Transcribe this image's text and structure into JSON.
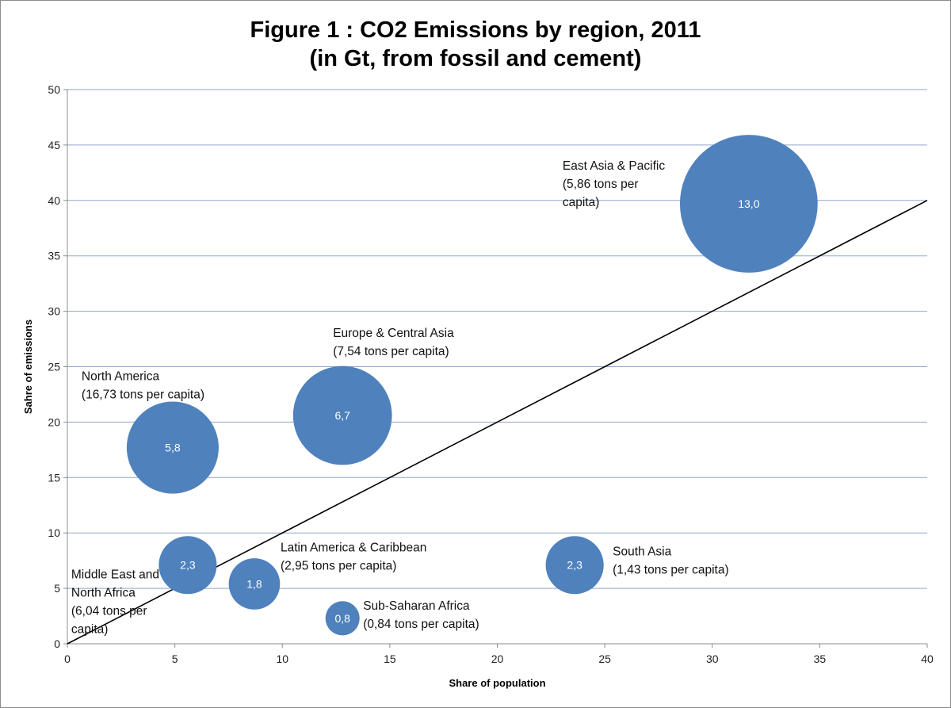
{
  "chart_data": {
    "type": "bubble",
    "title": [
      "Figure 1 : CO2 Emissions by region, 2011",
      "(in Gt, from fossil and cement)"
    ],
    "xlabel": "Share of population",
    "ylabel": "Sahre of emissions",
    "xlim": [
      0,
      40
    ],
    "ylim": [
      0,
      50
    ],
    "x_ticks": [
      0,
      5,
      10,
      15,
      20,
      25,
      30,
      35,
      40
    ],
    "y_ticks": [
      0,
      5,
      10,
      15,
      20,
      25,
      30,
      35,
      40,
      45,
      50
    ],
    "grid": "horizontal",
    "bubble_color": "#4f81bd",
    "reference_line": {
      "x": [
        0,
        40
      ],
      "y": [
        0,
        40
      ],
      "color": "#000000"
    },
    "points": [
      {
        "region": [
          "East Asia & Pacific",
          "(5,86 tons per",
          "capita)"
        ],
        "x": 31.7,
        "y": 39.7,
        "label": "13,0",
        "size": 13.0
      },
      {
        "region": [
          "Europe & Central Asia",
          "(7,54 tons per capita)"
        ],
        "x": 12.8,
        "y": 20.6,
        "label": "6,7",
        "size": 6.7
      },
      {
        "region": [
          "North America",
          "(16,73 tons per capita)"
        ],
        "x": 4.9,
        "y": 17.7,
        "label": "5,8",
        "size": 5.8
      },
      {
        "region": [
          "Middle East and",
          "North Africa",
          "(6,04 tons per",
          "capita)"
        ],
        "x": 5.6,
        "y": 7.1,
        "label": "2,3",
        "size": 2.3
      },
      {
        "region": [
          "Latin America & Caribbean",
          "(2,95 tons per capita)"
        ],
        "x": 8.7,
        "y": 5.4,
        "label": "1,8",
        "size": 1.8
      },
      {
        "region": [
          "Sub-Saharan Africa",
          "(0,84 tons per capita)"
        ],
        "x": 12.8,
        "y": 2.3,
        "label": "0,8",
        "size": 0.8
      },
      {
        "region": [
          "South Asia",
          "(1,43 tons per capita)"
        ],
        "x": 23.6,
        "y": 7.1,
        "label": "2,3",
        "size": 2.3
      }
    ]
  }
}
